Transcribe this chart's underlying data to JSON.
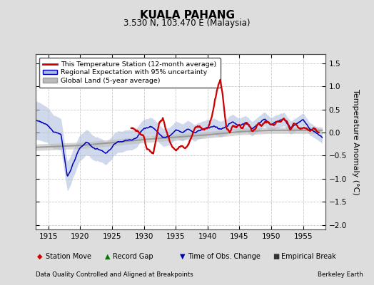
{
  "title": "KUALA PAHANG",
  "subtitle": "3.530 N, 103.470 E (Malaysia)",
  "ylabel": "Temperature Anomaly (°C)",
  "xlabel_left": "Data Quality Controlled and Aligned at Breakpoints",
  "xlabel_right": "Berkeley Earth",
  "xlim": [
    1913.0,
    1958.5
  ],
  "ylim": [
    -2.1,
    1.7
  ],
  "yticks": [
    -2,
    -1.5,
    -1,
    -0.5,
    0,
    0.5,
    1,
    1.5
  ],
  "ytick_labels": [
    "-2",
    "-1.5",
    "-1",
    "-0.5",
    "0",
    "0.5",
    "1",
    "1.5"
  ],
  "xticks": [
    1915,
    1920,
    1925,
    1930,
    1935,
    1940,
    1945,
    1950,
    1955
  ],
  "bg_color": "#dddddd",
  "plot_bg_color": "#ffffff",
  "grid_color": "#bbbbbb",
  "red_line_color": "#cc0000",
  "blue_line_color": "#0000bb",
  "blue_fill_color": "#aabbdd",
  "gray_line_color": "#999999",
  "gray_fill_color": "#bbbbbb",
  "legend_items": [
    "This Temperature Station (12-month average)",
    "Regional Expectation with 95% uncertainty",
    "Global Land (5-year average)"
  ],
  "bottom_legend": [
    {
      "symbol": "D",
      "color": "#cc0000",
      "label": "Station Move"
    },
    {
      "symbol": "^",
      "color": "#007700",
      "label": "Record Gap"
    },
    {
      "symbol": "v",
      "color": "#0000bb",
      "label": "Time of Obs. Change"
    },
    {
      "symbol": "s",
      "color": "#333333",
      "label": "Empirical Break"
    }
  ]
}
